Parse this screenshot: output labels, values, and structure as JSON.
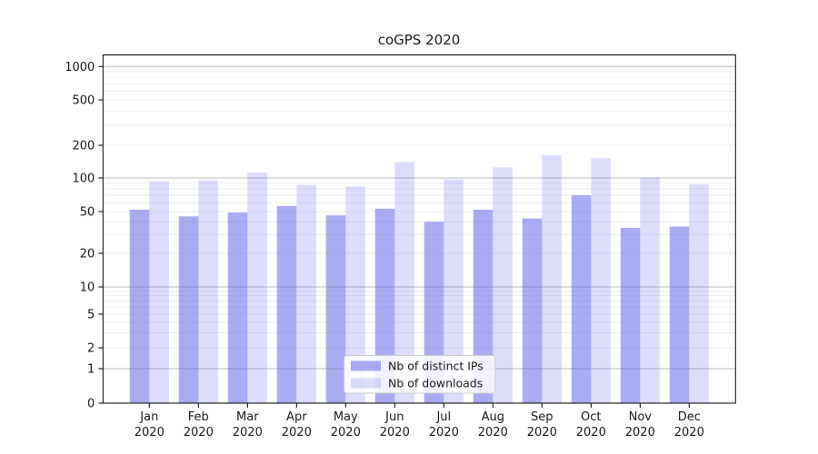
{
  "title": "coGPS 2020",
  "chart_data": {
    "type": "bar",
    "title": "coGPS 2020",
    "months": [
      "Jan",
      "Feb",
      "Mar",
      "Apr",
      "May",
      "Jun",
      "Jul",
      "Aug",
      "Sep",
      "Oct",
      "Nov",
      "Dec"
    ],
    "year": "2020",
    "series": [
      {
        "name": "Nb of distinct IPs",
        "values": [
          52,
          45,
          49,
          56,
          46,
          53,
          40,
          52,
          43,
          70,
          35,
          36
        ]
      },
      {
        "name": "Nb of downloads",
        "values": [
          93,
          95,
          112,
          87,
          84,
          140,
          97,
          125,
          162,
          152,
          101,
          88
        ]
      }
    ],
    "yscale": "symlog",
    "ylim": [
      0,
      1270
    ],
    "y_ticks": [
      0,
      1,
      2,
      5,
      10,
      20,
      50,
      100,
      200,
      500,
      1000
    ],
    "y_major_gridlines": [
      1,
      10,
      100,
      1000
    ],
    "y_minor_gridlines": [
      2,
      3,
      4,
      5,
      6,
      7,
      8,
      9,
      20,
      30,
      40,
      50,
      60,
      70,
      80,
      90,
      200,
      300,
      400,
      500,
      600,
      700,
      800,
      900
    ],
    "grid": true,
    "legend_position": "lower center",
    "colors": {
      "ips_bar": "rgba(102,102,235,0.55)",
      "downloads_bar": "rgba(102,102,235,0.22)",
      "major_grid": "#bbbbbb",
      "minor_grid": "#e9e9e9",
      "axis_text": "#1a1a1a",
      "spine": "#000000",
      "legend_border": "#cccccc",
      "background": "#ffffff"
    }
  }
}
